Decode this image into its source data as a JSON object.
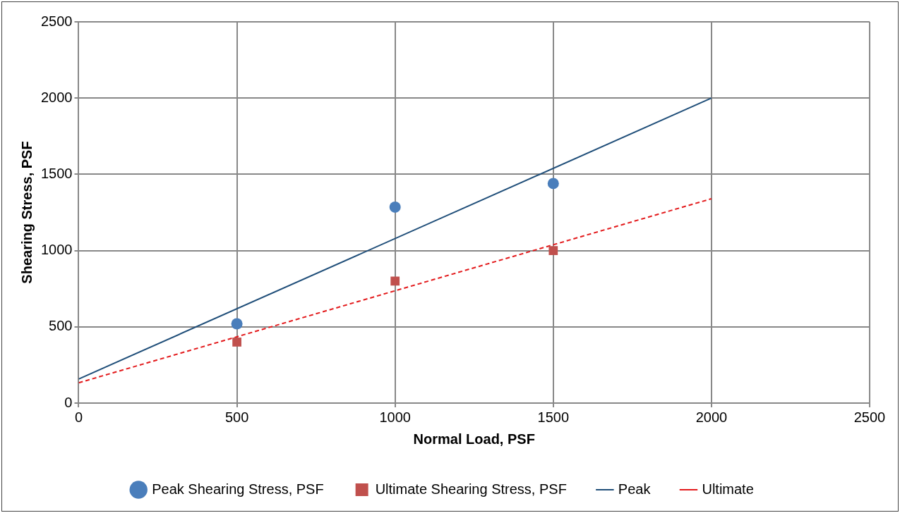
{
  "chart_data": {
    "type": "scatter",
    "xlabel": "Normal Load, PSF",
    "ylabel": "Shearing Stress, PSF",
    "xlim": [
      0,
      2500
    ],
    "xticks": [
      0,
      500,
      1000,
      1500,
      2000,
      2500
    ],
    "ylim": [
      0,
      2500
    ],
    "yticks": [
      0,
      500,
      1000,
      1500,
      2000,
      2500
    ],
    "grid": true,
    "legend": "bottom",
    "series": [
      {
        "name": "Peak Shearing Stress, PSF",
        "type": "scatter",
        "marker": "circle",
        "color": "#4a7ebb",
        "x": [
          500,
          1000,
          1500
        ],
        "values": [
          520,
          1285,
          1440
        ]
      },
      {
        "name": "Ultimate Shearing Stress, PSF",
        "type": "scatter",
        "marker": "square",
        "color": "#c0504d",
        "x": [
          500,
          1000,
          1500
        ],
        "values": [
          400,
          800,
          1000
        ]
      },
      {
        "name": "Peak",
        "type": "line",
        "marker": "none",
        "line_style": "solid",
        "color": "#1f4e79",
        "x": [
          0,
          2000
        ],
        "values": [
          158,
          2000
        ]
      },
      {
        "name": "Ultimate",
        "type": "line",
        "marker": "none",
        "line_style": "dashed",
        "color": "#e31a1c",
        "x": [
          0,
          2000
        ],
        "values": [
          133,
          1340
        ]
      }
    ]
  }
}
